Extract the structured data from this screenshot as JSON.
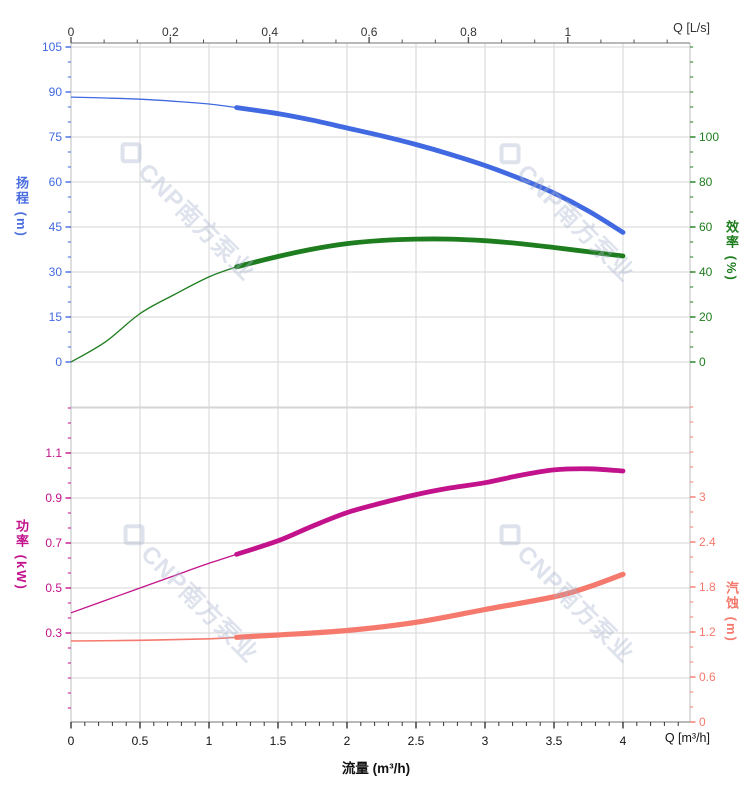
{
  "watermark": {
    "text": "CNP南方泵业",
    "logo_glyph": "diamond",
    "color": "#aab4cd"
  },
  "chart_data": [
    {
      "type": "line",
      "name": "head-and-efficiency",
      "x_axis": {
        "position": "top",
        "unit_label": "Q [L/s]",
        "unit": "L/s",
        "ticks": [
          0,
          0.2,
          0.4,
          0.6,
          0.8,
          1
        ],
        "range": [
          0,
          1.25
        ]
      },
      "left_axis": {
        "title": "扬程 (m)",
        "quantity": "扬程",
        "unit": "m",
        "color": "#4169e1",
        "ticks": [
          105,
          90,
          75,
          60,
          45,
          30,
          15,
          0
        ],
        "range": [
          0,
          106
        ]
      },
      "right_axis": {
        "title": "效率 (%)",
        "quantity": "效率",
        "unit": "%",
        "color": "#1e7d1e",
        "ticks": [
          100,
          80,
          60,
          40,
          20,
          0
        ],
        "range": [
          0,
          142
        ]
      },
      "series": [
        {
          "name": "扬程",
          "axis": "left",
          "color": "#4169e1",
          "highlight_range_m3h": [
            1.2,
            4
          ],
          "points_m3h": [
            [
              0,
              88.3
            ],
            [
              0.25,
              88.0
            ],
            [
              0.5,
              87.6
            ],
            [
              0.75,
              86.9
            ],
            [
              1,
              86.0
            ],
            [
              1.2,
              84.8
            ],
            [
              1.5,
              82.8
            ],
            [
              1.75,
              80.6
            ],
            [
              2,
              78.0
            ],
            [
              2.25,
              75.4
            ],
            [
              2.5,
              72.5
            ],
            [
              2.75,
              69.2
            ],
            [
              3,
              65.5
            ],
            [
              3.25,
              61.2
            ],
            [
              3.5,
              56.3
            ],
            [
              3.75,
              50.3
            ],
            [
              4,
              43.2
            ]
          ]
        },
        {
          "name": "效率",
          "axis": "right",
          "color": "#1e7d1e",
          "highlight_range_m3h": [
            1.2,
            4
          ],
          "points_m3h": [
            [
              0,
              0
            ],
            [
              0.25,
              9
            ],
            [
              0.5,
              21.5
            ],
            [
              0.75,
              30
            ],
            [
              1,
              37.8
            ],
            [
              1.2,
              42.3
            ],
            [
              1.5,
              46.9
            ],
            [
              1.75,
              50.2
            ],
            [
              2,
              52.6
            ],
            [
              2.25,
              54.0
            ],
            [
              2.5,
              54.6
            ],
            [
              2.75,
              54.6
            ],
            [
              3,
              53.9
            ],
            [
              3.25,
              52.6
            ],
            [
              3.5,
              50.9
            ],
            [
              3.75,
              49.0
            ],
            [
              4,
              47.1
            ]
          ]
        }
      ]
    },
    {
      "type": "line",
      "name": "power-and-npsh",
      "x_axis": {
        "position": "bottom",
        "title": "流量 (m³/h)",
        "unit_label": "Q [m³/h]",
        "unit": "m³/h",
        "ticks": [
          0,
          0.5,
          1,
          1.5,
          2,
          2.5,
          3,
          3.5,
          4
        ],
        "range": [
          0,
          4.49
        ]
      },
      "left_axis": {
        "title": "功率 (kW)",
        "quantity": "功率",
        "unit": "kW",
        "color": "#c2138c",
        "ticks": [
          1.1,
          0.9,
          0.7,
          0.5,
          0.3
        ],
        "range": [
          -0.1,
          1.32
        ]
      },
      "right_axis": {
        "title": "汽蚀 (m)",
        "quantity": "汽蚀",
        "unit": "m",
        "color": "#f5796d",
        "ticks": [
          3,
          2.4,
          1.8,
          1.2,
          0.6,
          0
        ],
        "range": [
          0,
          4.25
        ]
      },
      "series": [
        {
          "name": "功率",
          "axis": "left",
          "color": "#c2138c",
          "highlight_range_m3h": [
            1.2,
            4
          ],
          "points_m3h": [
            [
              0,
              0.39
            ],
            [
              0.25,
              0.445
            ],
            [
              0.5,
              0.5
            ],
            [
              0.75,
              0.555
            ],
            [
              1,
              0.61
            ],
            [
              1.2,
              0.65
            ],
            [
              1.5,
              0.71
            ],
            [
              1.75,
              0.775
            ],
            [
              2,
              0.835
            ],
            [
              2.25,
              0.878
            ],
            [
              2.5,
              0.915
            ],
            [
              2.75,
              0.945
            ],
            [
              3,
              0.968
            ],
            [
              3.25,
              1.0
            ],
            [
              3.5,
              1.025
            ],
            [
              3.75,
              1.03
            ],
            [
              4,
              1.02
            ]
          ]
        },
        {
          "name": "汽蚀",
          "axis": "right",
          "color": "#f5796d",
          "highlight_range_m3h": [
            1.2,
            4
          ],
          "points_m3h": [
            [
              0,
              1.08
            ],
            [
              0.5,
              1.09
            ],
            [
              1,
              1.11
            ],
            [
              1.2,
              1.13
            ],
            [
              1.5,
              1.16
            ],
            [
              2,
              1.22
            ],
            [
              2.5,
              1.33
            ],
            [
              3,
              1.5
            ],
            [
              3.5,
              1.67
            ],
            [
              3.75,
              1.8
            ],
            [
              4,
              1.97
            ]
          ]
        }
      ]
    }
  ]
}
